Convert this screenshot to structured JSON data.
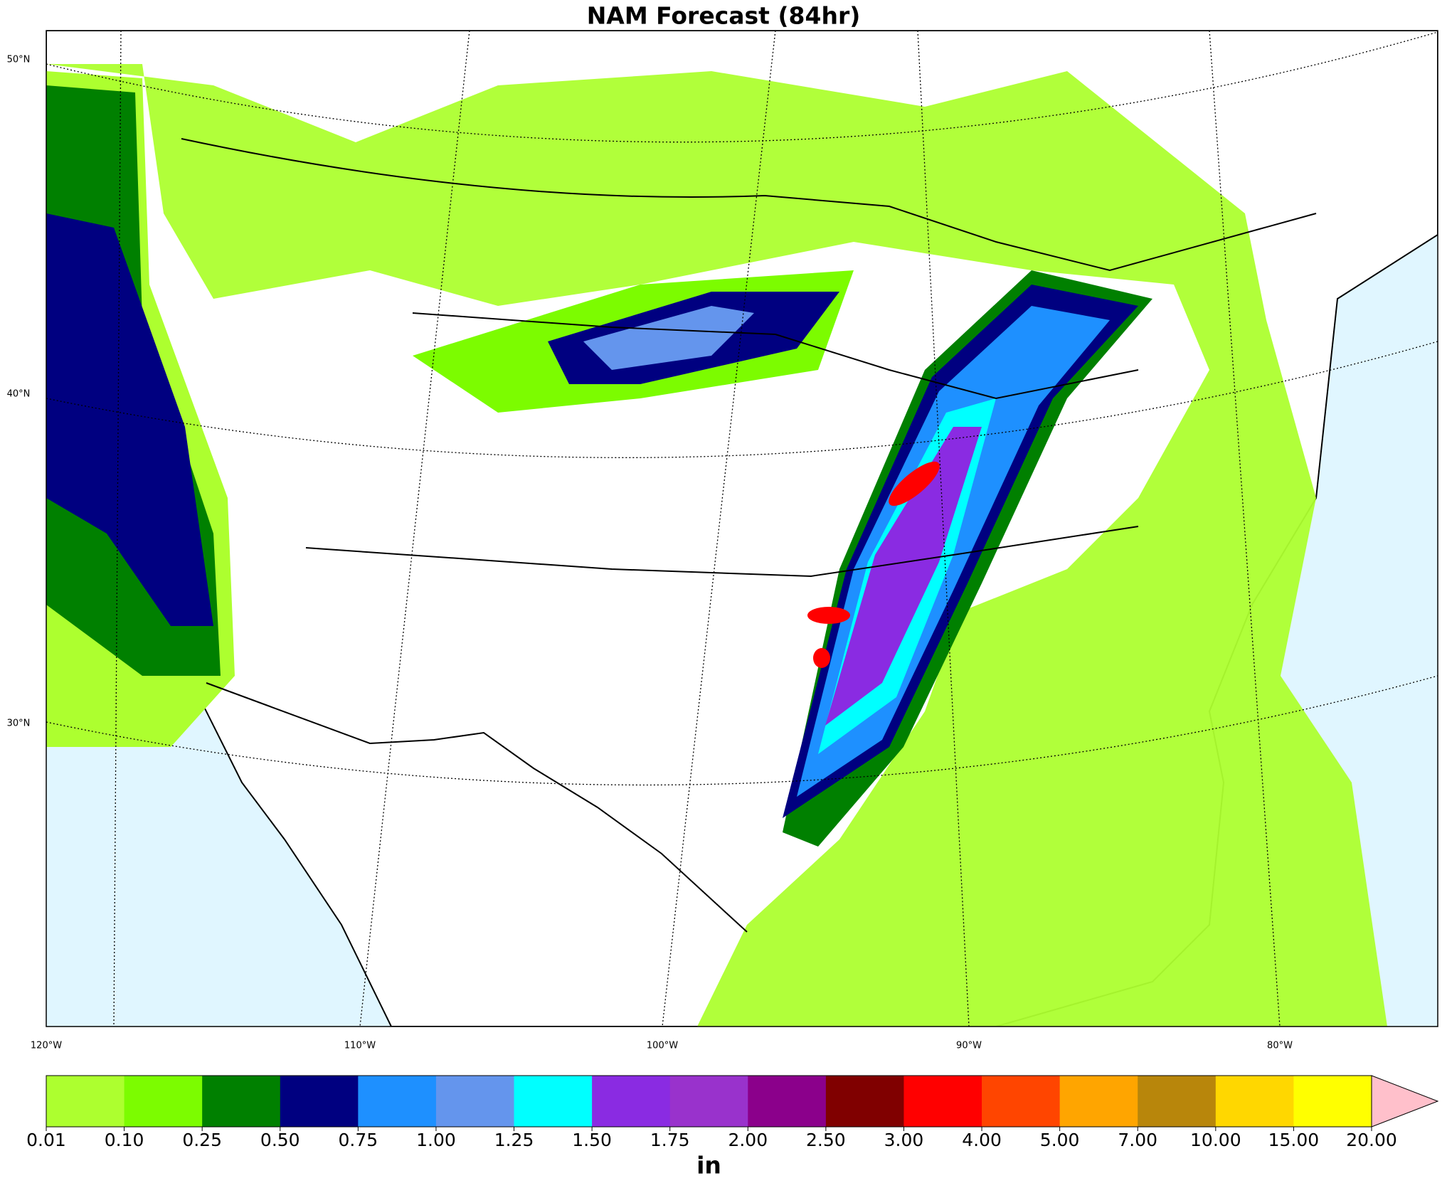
{
  "title": "NAM Forecast (84hr)",
  "map": {
    "lat_labels": [
      "50°N",
      "40°N",
      "30°N"
    ],
    "lon_labels": [
      "120°W",
      "110°W",
      "100°W",
      "90°W",
      "80°W"
    ]
  },
  "colorbar": {
    "levels": [
      {
        "value": 0.01,
        "label": "0.01"
      },
      {
        "value": 0.1,
        "label": "0.10"
      },
      {
        "value": 0.25,
        "label": "0.25"
      },
      {
        "value": 0.5,
        "label": "0.50"
      },
      {
        "value": 0.75,
        "label": "0.75"
      },
      {
        "value": 1,
        "label": "1.00"
      },
      {
        "value": 1.25,
        "label": "1.25"
      },
      {
        "value": 1.5,
        "label": "1.50"
      },
      {
        "value": 1.75,
        "label": "1.75"
      },
      {
        "value": 2,
        "label": "2.00"
      },
      {
        "value": 2.5,
        "label": "2.50"
      },
      {
        "value": 3,
        "label": "3.00"
      },
      {
        "value": 4,
        "label": "4.00"
      },
      {
        "value": 5,
        "label": "5.00"
      },
      {
        "value": 7,
        "label": "7.00"
      },
      {
        "value": 10,
        "label": "10.00"
      },
      {
        "value": 15,
        "label": "15.00"
      },
      {
        "value": 20,
        "label": "20.00"
      }
    ],
    "colors": [
      "#adff2f",
      "#7cfc00",
      "#008000",
      "#000080",
      "#1e90ff",
      "#6495ed",
      "#00ffff",
      "#8a2be2",
      "#9932cc",
      "#8b008b",
      "#800000",
      "#ff0000",
      "#ff4500",
      "#ffa500",
      "#b8860b",
      "#ffd700",
      "#ffff00"
    ],
    "extend_color": "#ffc0cb",
    "unit": "in"
  }
}
